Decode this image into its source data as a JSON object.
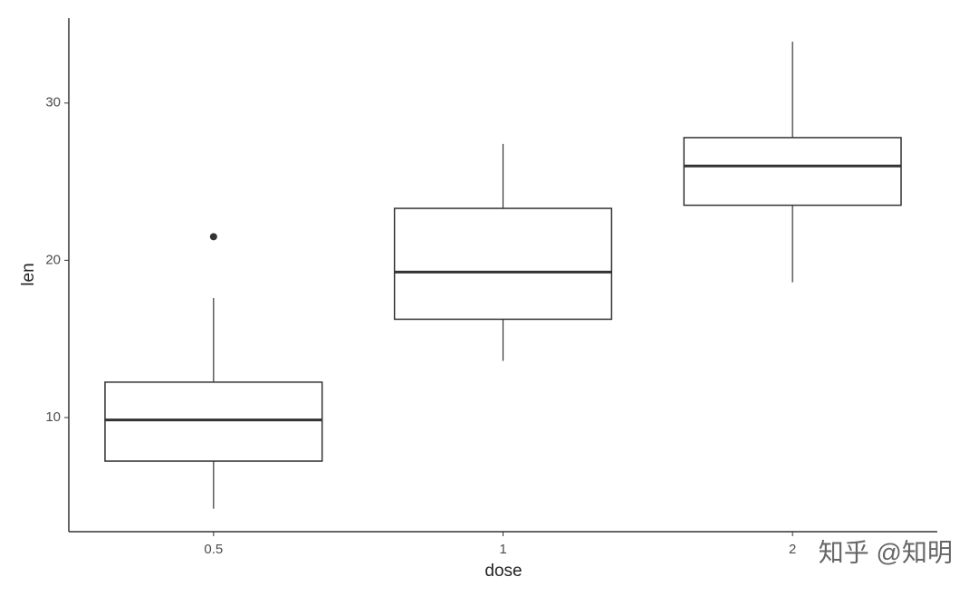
{
  "chart_data": {
    "type": "box",
    "x_label": "dose",
    "y_label": "len",
    "categories": [
      "0.5",
      "1",
      "2"
    ],
    "boxes": [
      {
        "min": 4.2,
        "q1": 7.23,
        "median": 9.85,
        "q3": 12.25,
        "max": 17.6,
        "outliers": [
          21.5
        ]
      },
      {
        "min": 13.6,
        "q1": 16.25,
        "median": 19.25,
        "q3": 23.3,
        "max": 27.4,
        "outliers": []
      },
      {
        "min": 18.6,
        "q1": 23.5,
        "median": 26.0,
        "q3": 27.8,
        "max": 33.9,
        "outliers": []
      }
    ],
    "color": "#333333",
    "ylim": [
      2.74,
      35.4
    ],
    "yticks": [
      10,
      20,
      30
    ],
    "grid": false,
    "watermark": "知乎 @知明"
  }
}
